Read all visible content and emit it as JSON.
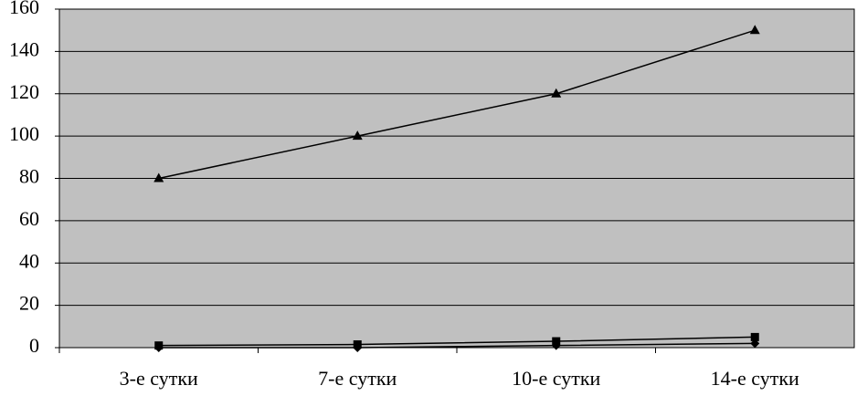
{
  "chart_data": {
    "type": "line",
    "categories": [
      "3-е сутки",
      "7-е сутки",
      "10-е сутки",
      "14-е сутки"
    ],
    "series": [
      {
        "color": "#000000",
        "marker": "triangle",
        "values": [
          80,
          100,
          120,
          150
        ]
      },
      {
        "color": "#000000",
        "marker": "square",
        "values": [
          1,
          1.5,
          3,
          5
        ]
      },
      {
        "color": "#000000",
        "marker": "diamond",
        "values": [
          0,
          0,
          1,
          2
        ]
      }
    ],
    "ylim": [
      0,
      160
    ],
    "yticks": [
      0,
      20,
      40,
      60,
      80,
      100,
      120,
      140,
      160
    ],
    "grid": true,
    "plot_background": "#c0c0c0"
  }
}
